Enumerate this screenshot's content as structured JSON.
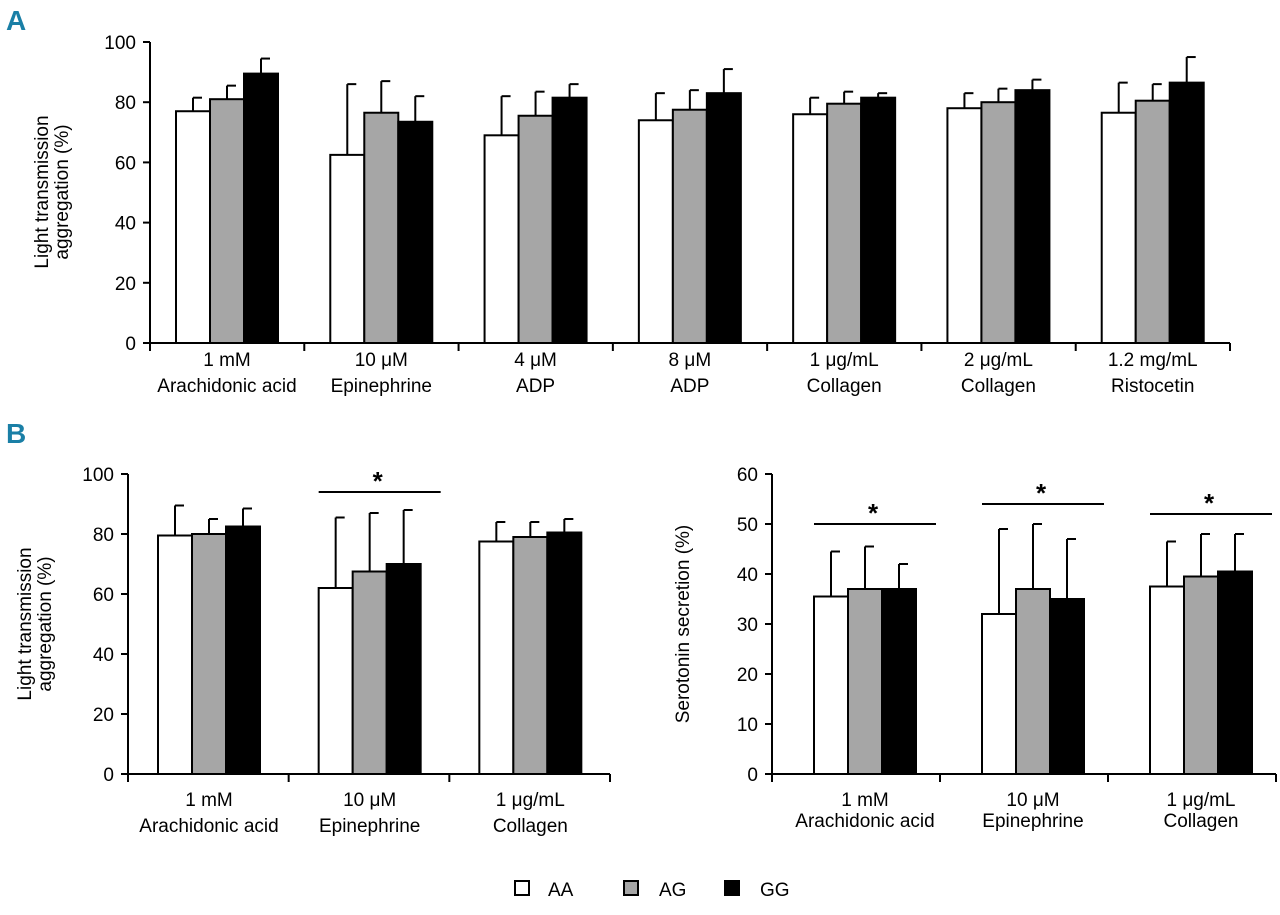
{
  "panels": {
    "a": "A",
    "b": "B"
  },
  "legend": {
    "AA": "AA",
    "AG": "AG",
    "GG": "GG",
    "colors": {
      "AA": "#ffffff",
      "AG": "#a6a6a6",
      "GG": "#000000"
    }
  },
  "chart_data": [
    {
      "type": "bar",
      "panel": "A",
      "title": "",
      "ylabel": [
        "Light transmission",
        "aggregation (%)"
      ],
      "xlabel": "",
      "ylim": [
        0,
        100
      ],
      "yticks": [
        0,
        20,
        40,
        60,
        80,
        100
      ],
      "categories": [
        [
          "1 mM",
          "Arachidonic acid"
        ],
        [
          "10 μM",
          "Epinephrine"
        ],
        [
          "4 μM",
          "ADP"
        ],
        [
          "8 μM",
          "ADP"
        ],
        [
          "1 μg/mL",
          "Collagen"
        ],
        [
          "2 μg/mL",
          "Collagen"
        ],
        [
          "1.2 mg/mL",
          "Ristocetin"
        ]
      ],
      "series": [
        {
          "name": "AA",
          "values": [
            77,
            62.5,
            69,
            74,
            76,
            78,
            76.5
          ],
          "errors": [
            4.5,
            23.5,
            13,
            9,
            5.5,
            5,
            10
          ]
        },
        {
          "name": "AG",
          "values": [
            81,
            76.5,
            75.5,
            77.5,
            79.5,
            80,
            80.5
          ],
          "errors": [
            4.5,
            10.5,
            8,
            6.5,
            4,
            4.5,
            5.5
          ]
        },
        {
          "name": "GG",
          "values": [
            89.5,
            73.5,
            81.5,
            83,
            81.5,
            84,
            86.5
          ],
          "errors": [
            5,
            8.5,
            4.5,
            8,
            1.5,
            3.5,
            8.5
          ]
        }
      ],
      "significance": []
    },
    {
      "type": "bar",
      "panel": "B-left",
      "title": "",
      "ylabel": [
        "Light transmission",
        "aggregation (%)"
      ],
      "xlabel": "",
      "ylim": [
        0,
        100
      ],
      "yticks": [
        0,
        20,
        40,
        60,
        80,
        100
      ],
      "categories": [
        [
          "1 mM",
          "Arachidonic acid"
        ],
        [
          "10 μM",
          "Epinephrine"
        ],
        [
          "1 μg/mL",
          "Collagen"
        ]
      ],
      "series": [
        {
          "name": "AA",
          "values": [
            79.5,
            62,
            77.5
          ],
          "errors": [
            10,
            23.5,
            6.5
          ]
        },
        {
          "name": "AG",
          "values": [
            80,
            67.5,
            79
          ],
          "errors": [
            5,
            19.5,
            5
          ]
        },
        {
          "name": "GG",
          "values": [
            82.5,
            70,
            80.5
          ],
          "errors": [
            6,
            18,
            4.5
          ]
        }
      ],
      "significance": [
        {
          "category": 1,
          "level": 94,
          "label": "*"
        }
      ]
    },
    {
      "type": "bar",
      "panel": "B-right",
      "title": "",
      "ylabel": [
        "Serotonin secretion (%)"
      ],
      "xlabel": "",
      "ylim": [
        0,
        60
      ],
      "yticks": [
        0,
        10,
        20,
        30,
        40,
        50,
        60
      ],
      "categories": [
        [
          "1 mM",
          "Arachidonic acid"
        ],
        [
          "10 μM",
          "Epinephrine"
        ],
        [
          "1 μg/mL",
          "Collagen"
        ]
      ],
      "series": [
        {
          "name": "AA",
          "values": [
            35.5,
            32,
            37.5
          ],
          "errors": [
            9,
            17,
            9
          ]
        },
        {
          "name": "AG",
          "values": [
            37,
            37,
            39.5
          ],
          "errors": [
            8.5,
            13,
            8.5
          ]
        },
        {
          "name": "GG",
          "values": [
            37,
            35,
            40.5
          ],
          "errors": [
            5,
            12,
            7.5
          ]
        }
      ],
      "significance": [
        {
          "category": 0,
          "level": 50,
          "label": "*"
        },
        {
          "category": 1,
          "level": 54,
          "label": "*"
        },
        {
          "category": 2,
          "level": 52,
          "label": "*"
        }
      ]
    }
  ]
}
